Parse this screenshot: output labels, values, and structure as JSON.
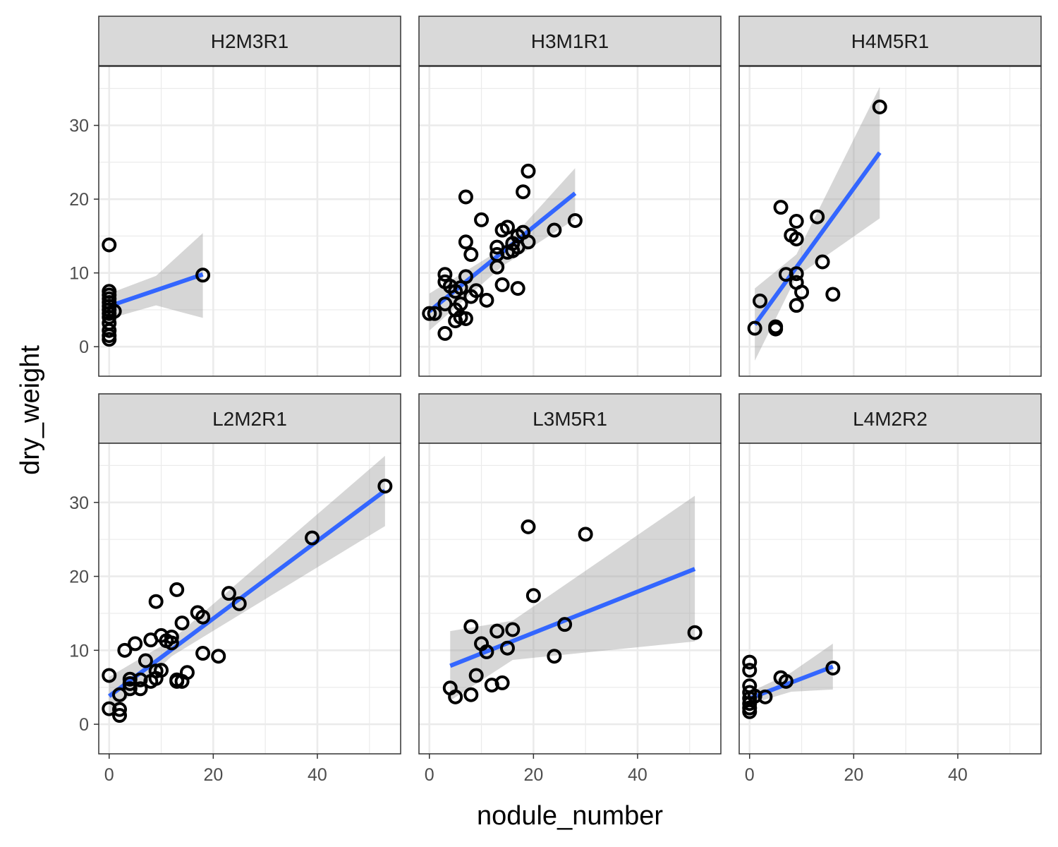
{
  "chart_data": {
    "type": "scatter",
    "facet_layout": "2x3",
    "xlabel": "nodule_number",
    "ylabel": "dry_weight",
    "xlim": [
      -2,
      56
    ],
    "ylim": [
      -4,
      38
    ],
    "x_ticks": [
      0,
      20,
      40
    ],
    "y_ticks": [
      0,
      10,
      20,
      30
    ],
    "grid": true,
    "colors": {
      "fit_line": "#3366FF",
      "confidence_band": "#999999",
      "point_stroke": "#000000",
      "strip_fill": "#D9D9D9",
      "panel_border": "#333333",
      "grid_major": "#EBEBEB"
    },
    "panels": [
      {
        "label": "H2M3R1",
        "points": [
          [
            0,
            13.8
          ],
          [
            0,
            7.5
          ],
          [
            0,
            7.0
          ],
          [
            0,
            6.5
          ],
          [
            0,
            6.0
          ],
          [
            0,
            5.5
          ],
          [
            0,
            5.0
          ],
          [
            0,
            4.5
          ],
          [
            0,
            4.0
          ],
          [
            0,
            3.2
          ],
          [
            0,
            2.2
          ],
          [
            0,
            1.5
          ],
          [
            0,
            1.0
          ],
          [
            1,
            4.8
          ],
          [
            18,
            9.7
          ]
        ],
        "fit": {
          "x": [
            0,
            18
          ],
          "y": [
            5.5,
            9.8
          ]
        },
        "band": {
          "x": [
            0,
            9,
            18
          ],
          "lower": [
            3.8,
            5.6,
            3.9
          ],
          "upper": [
            7.2,
            9.6,
            15.4
          ]
        }
      },
      {
        "label": "H3M1R1",
        "points": [
          [
            0,
            4.5
          ],
          [
            1,
            4.5
          ],
          [
            3,
            1.8
          ],
          [
            3,
            5.8
          ],
          [
            3,
            8.8
          ],
          [
            3,
            9.8
          ],
          [
            4,
            8.2
          ],
          [
            5,
            3.5
          ],
          [
            5,
            5.0
          ],
          [
            5,
            7.5
          ],
          [
            6,
            4.0
          ],
          [
            6,
            5.8
          ],
          [
            6,
            8.0
          ],
          [
            7,
            3.8
          ],
          [
            7,
            9.5
          ],
          [
            7,
            14.2
          ],
          [
            7,
            20.3
          ],
          [
            8,
            6.8
          ],
          [
            8,
            12.5
          ],
          [
            9,
            7.6
          ],
          [
            10,
            17.2
          ],
          [
            11,
            6.3
          ],
          [
            13,
            10.8
          ],
          [
            13,
            12.5
          ],
          [
            13,
            13.5
          ],
          [
            14,
            8.4
          ],
          [
            14,
            15.8
          ],
          [
            15,
            12.8
          ],
          [
            15,
            16.2
          ],
          [
            16,
            13.0
          ],
          [
            16,
            14.0
          ],
          [
            17,
            7.9
          ],
          [
            17,
            13.5
          ],
          [
            17,
            15.0
          ],
          [
            18,
            15.5
          ],
          [
            18,
            21.0
          ],
          [
            19,
            14.2
          ],
          [
            19,
            23.8
          ],
          [
            24,
            15.8
          ],
          [
            28,
            17.1
          ]
        ],
        "fit": {
          "x": [
            0,
            28
          ],
          "y": [
            4.8,
            20.8
          ]
        },
        "band": {
          "x": [
            0,
            14,
            28
          ],
          "lower": [
            2.2,
            10.9,
            17.3
          ],
          "upper": [
            7.2,
            13.3,
            24.2
          ]
        }
      },
      {
        "label": "H4M5R1",
        "points": [
          [
            1,
            2.5
          ],
          [
            2,
            6.2
          ],
          [
            5,
            2.4
          ],
          [
            5,
            2.7
          ],
          [
            6,
            18.9
          ],
          [
            7,
            9.8
          ],
          [
            8,
            15.1
          ],
          [
            9,
            5.6
          ],
          [
            9,
            8.7
          ],
          [
            9,
            9.9
          ],
          [
            9,
            14.6
          ],
          [
            9,
            17.0
          ],
          [
            10,
            7.4
          ],
          [
            13,
            17.6
          ],
          [
            14,
            11.5
          ],
          [
            16,
            7.1
          ],
          [
            25,
            32.5
          ]
        ],
        "fit": {
          "x": [
            1,
            25
          ],
          "y": [
            3.0,
            26.3
          ]
        },
        "band": {
          "x": [
            1,
            9,
            25
          ],
          "lower": [
            -1.9,
            9.5,
            17.4
          ],
          "upper": [
            7.9,
            12.5,
            35.2
          ]
        }
      },
      {
        "label": "L2M2R1",
        "points": [
          [
            0,
            2.1
          ],
          [
            0,
            6.6
          ],
          [
            2,
            1.2
          ],
          [
            2,
            2.0
          ],
          [
            2,
            4.0
          ],
          [
            3,
            10.0
          ],
          [
            4,
            4.8
          ],
          [
            4,
            5.5
          ],
          [
            4,
            6.1
          ],
          [
            5,
            10.9
          ],
          [
            6,
            4.8
          ],
          [
            6,
            6.0
          ],
          [
            7,
            8.6
          ],
          [
            8,
            5.8
          ],
          [
            8,
            11.4
          ],
          [
            9,
            6.2
          ],
          [
            9,
            7.2
          ],
          [
            9,
            16.6
          ],
          [
            10,
            7.3
          ],
          [
            10,
            12.0
          ],
          [
            11,
            11.3
          ],
          [
            12,
            11.0
          ],
          [
            12,
            11.8
          ],
          [
            13,
            5.8
          ],
          [
            13,
            6.0
          ],
          [
            13,
            18.2
          ],
          [
            14,
            5.8
          ],
          [
            14,
            13.7
          ],
          [
            15,
            7.0
          ],
          [
            17,
            15.1
          ],
          [
            18,
            14.5
          ],
          [
            18,
            9.6
          ],
          [
            21,
            9.2
          ],
          [
            23,
            17.7
          ],
          [
            25,
            16.3
          ],
          [
            39,
            25.2
          ],
          [
            53,
            32.2
          ]
        ],
        "fit": {
          "x": [
            0,
            53
          ],
          "y": [
            3.8,
            31.6
          ]
        },
        "band": {
          "x": [
            0,
            12,
            53
          ],
          "lower": [
            1.2,
            9.2,
            26.8
          ],
          "upper": [
            6.4,
            11.4,
            36.3
          ]
        }
      },
      {
        "label": "L3M5R1",
        "points": [
          [
            4,
            4.9
          ],
          [
            5,
            3.7
          ],
          [
            8,
            4.0
          ],
          [
            8,
            13.2
          ],
          [
            9,
            6.6
          ],
          [
            10,
            10.9
          ],
          [
            11,
            9.8
          ],
          [
            12,
            5.3
          ],
          [
            13,
            12.6
          ],
          [
            14,
            5.6
          ],
          [
            15,
            10.3
          ],
          [
            16,
            12.8
          ],
          [
            19,
            26.7
          ],
          [
            20,
            17.4
          ],
          [
            24,
            9.2
          ],
          [
            26,
            13.5
          ],
          [
            30,
            25.7
          ],
          [
            51,
            12.4
          ]
        ],
        "fit": {
          "x": [
            4,
            51
          ],
          "y": [
            7.9,
            21.0
          ]
        },
        "band": {
          "x": [
            4,
            16,
            51
          ],
          "lower": [
            3.2,
            8.7,
            11.2
          ],
          "upper": [
            12.6,
            14.0,
            30.9
          ]
        }
      },
      {
        "label": "L4M2R2",
        "points": [
          [
            0,
            1.7
          ],
          [
            0,
            2.2
          ],
          [
            0,
            2.8
          ],
          [
            0,
            3.5
          ],
          [
            0,
            4.3
          ],
          [
            0,
            5.2
          ],
          [
            0,
            7.3
          ],
          [
            0,
            8.4
          ],
          [
            1,
            3.8
          ],
          [
            3,
            3.7
          ],
          [
            6,
            6.3
          ],
          [
            7,
            5.8
          ],
          [
            16,
            7.6
          ]
        ],
        "fit": {
          "x": [
            0,
            16
          ],
          "y": [
            3.5,
            7.8
          ]
        },
        "band": {
          "x": [
            0,
            8,
            16
          ],
          "lower": [
            2.7,
            4.4,
            4.7
          ],
          "upper": [
            4.3,
            7.0,
            10.9
          ]
        }
      }
    ]
  }
}
